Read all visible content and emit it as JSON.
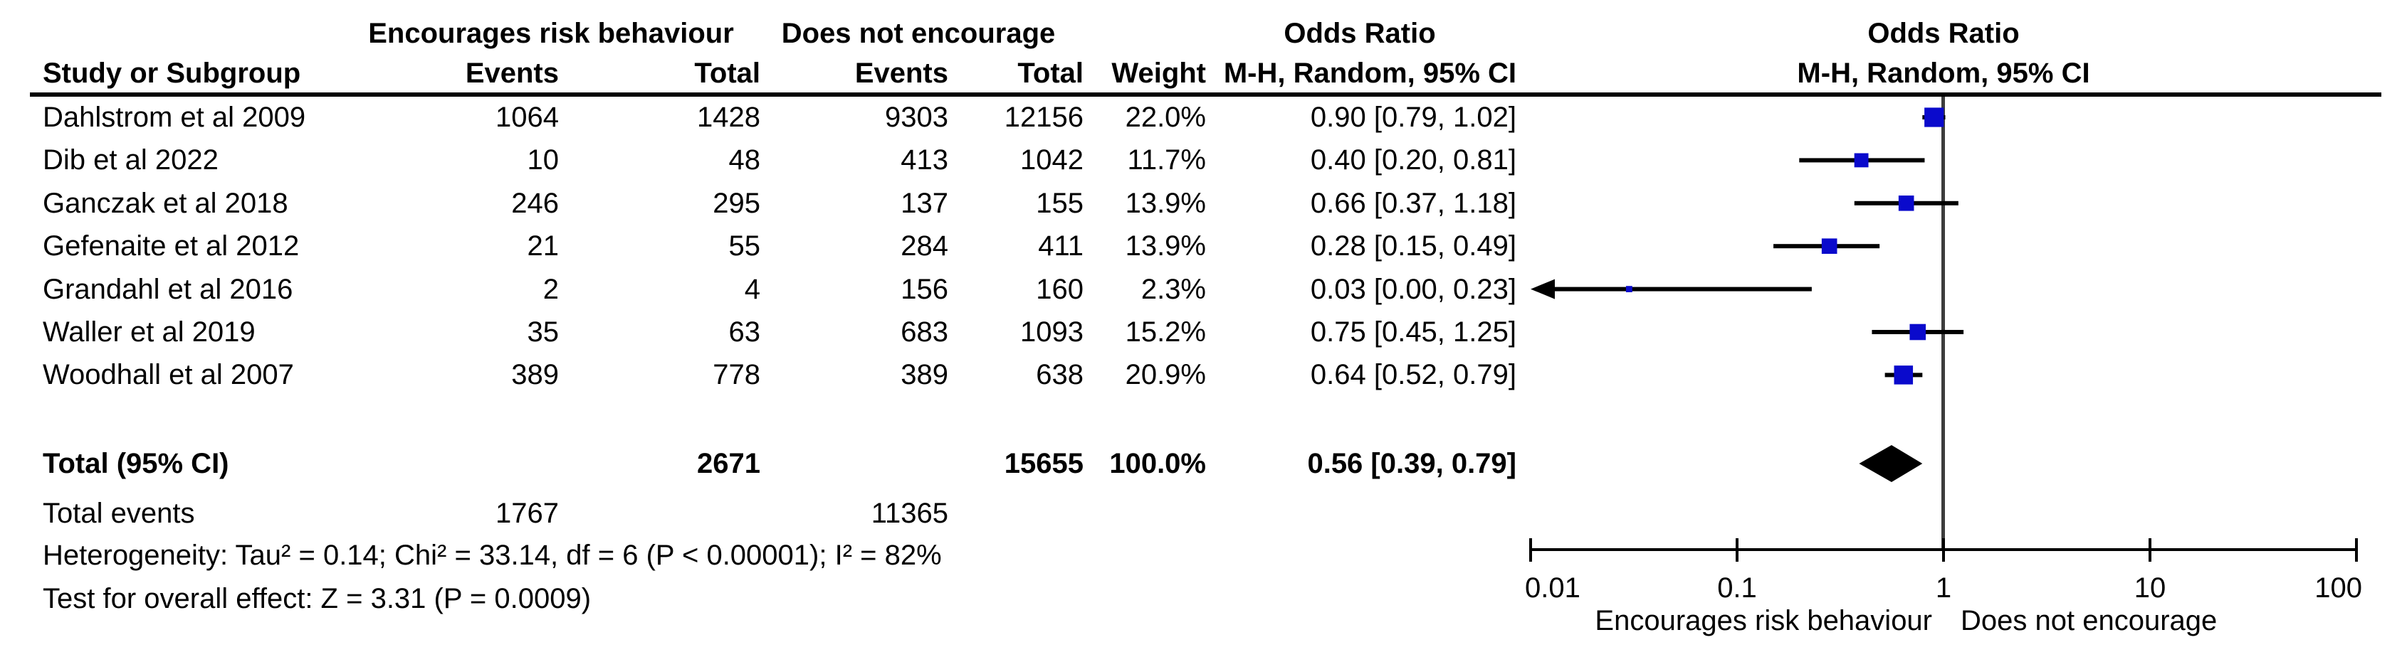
{
  "header": {
    "study_col": "Study or Subgroup",
    "group1": "Encourages risk behaviour",
    "group2": "Does not encourage",
    "events": "Events",
    "total": "Total",
    "weight": "Weight",
    "or_title_text_col": "Odds Ratio",
    "or_title_plot_col": "Odds Ratio",
    "method_text_col": "M-H, Random, 95% CI",
    "method_plot_col": "M-H, Random, 95% CI"
  },
  "table": {
    "rows": [
      {
        "name": "Dahlstrom et al 2009",
        "e1": "1064",
        "t1": "1428",
        "e2": "9303",
        "t2": "12156",
        "weight": "22.0%",
        "ci": "0.90 [0.79, 1.02]"
      },
      {
        "name": "Dib et al 2022",
        "e1": "10",
        "t1": "48",
        "e2": "413",
        "t2": "1042",
        "weight": "11.7%",
        "ci": "0.40 [0.20, 0.81]"
      },
      {
        "name": "Ganczak et al 2018",
        "e1": "246",
        "t1": "295",
        "e2": "137",
        "t2": "155",
        "weight": "13.9%",
        "ci": "0.66 [0.37, 1.18]"
      },
      {
        "name": "Gefenaite et al 2012",
        "e1": "21",
        "t1": "55",
        "e2": "284",
        "t2": "411",
        "weight": "13.9%",
        "ci": "0.28 [0.15, 0.49]"
      },
      {
        "name": "Grandahl et al 2016",
        "e1": "2",
        "t1": "4",
        "e2": "156",
        "t2": "160",
        "weight": "2.3%",
        "ci": "0.03 [0.00, 0.23]"
      },
      {
        "name": "Waller et al 2019",
        "e1": "35",
        "t1": "63",
        "e2": "683",
        "t2": "1093",
        "weight": "15.2%",
        "ci": "0.75 [0.45, 1.25]"
      },
      {
        "name": "Woodhall et al 2007",
        "e1": "389",
        "t1": "778",
        "e2": "389",
        "t2": "638",
        "weight": "20.9%",
        "ci": "0.64 [0.52, 0.79]"
      }
    ]
  },
  "totals": {
    "label": "Total (95% CI)",
    "t1": "2671",
    "t2": "15655",
    "weight": "100.0%",
    "ci": "0.56 [0.39, 0.79]",
    "events_label": "Total events",
    "e1": "1767",
    "e2": "11365"
  },
  "footer": {
    "heterogeneity": "Heterogeneity: Tau² = 0.14; Chi² = 33.14, df = 6 (P < 0.00001); I² = 82%",
    "overall_effect": "Test for overall effect: Z = 3.31 (P = 0.0009)"
  },
  "colors": {
    "square_blue": "#0a0acc",
    "diamond_black": "#000000",
    "center_line_gray": "#3d3d3d",
    "line_black": "#000000"
  },
  "chart_data": {
    "type": "scatter",
    "subtype": "forest-plot-odds-ratio",
    "effect_measure": "Odds Ratio, M-H, Random, 95% CI",
    "x_scale": "log",
    "x_range": [
      0.01,
      100
    ],
    "x_ticks": [
      0.01,
      0.1,
      1,
      10,
      100
    ],
    "x_tick_labels": [
      "0.01",
      "0.1",
      "1",
      "10",
      "100"
    ],
    "axis_left_label": "Encourages risk behaviour",
    "axis_right_label": "Does not encourage",
    "points": [
      {
        "label": "Dahlstrom et al 2009",
        "or": 0.9,
        "lo": 0.79,
        "hi": 1.02,
        "weight_pct": 22.0,
        "arrow_low": false
      },
      {
        "label": "Dib et al 2022",
        "or": 0.4,
        "lo": 0.2,
        "hi": 0.81,
        "weight_pct": 11.7,
        "arrow_low": false
      },
      {
        "label": "Ganczak et al 2018",
        "or": 0.66,
        "lo": 0.37,
        "hi": 1.18,
        "weight_pct": 13.9,
        "arrow_low": false
      },
      {
        "label": "Gefenaite et al 2012",
        "or": 0.28,
        "lo": 0.15,
        "hi": 0.49,
        "weight_pct": 13.9,
        "arrow_low": false
      },
      {
        "label": "Grandahl et al 2016",
        "or": 0.03,
        "lo": 0.0,
        "hi": 0.23,
        "weight_pct": 2.3,
        "arrow_low": true
      },
      {
        "label": "Waller et al 2019",
        "or": 0.75,
        "lo": 0.45,
        "hi": 1.25,
        "weight_pct": 15.2,
        "arrow_low": false
      },
      {
        "label": "Woodhall et al 2007",
        "or": 0.64,
        "lo": 0.52,
        "hi": 0.79,
        "weight_pct": 20.9,
        "arrow_low": false
      }
    ],
    "total": {
      "label": "Total (95% CI)",
      "or": 0.56,
      "lo": 0.39,
      "hi": 0.79,
      "weight_pct": 100.0
    }
  }
}
